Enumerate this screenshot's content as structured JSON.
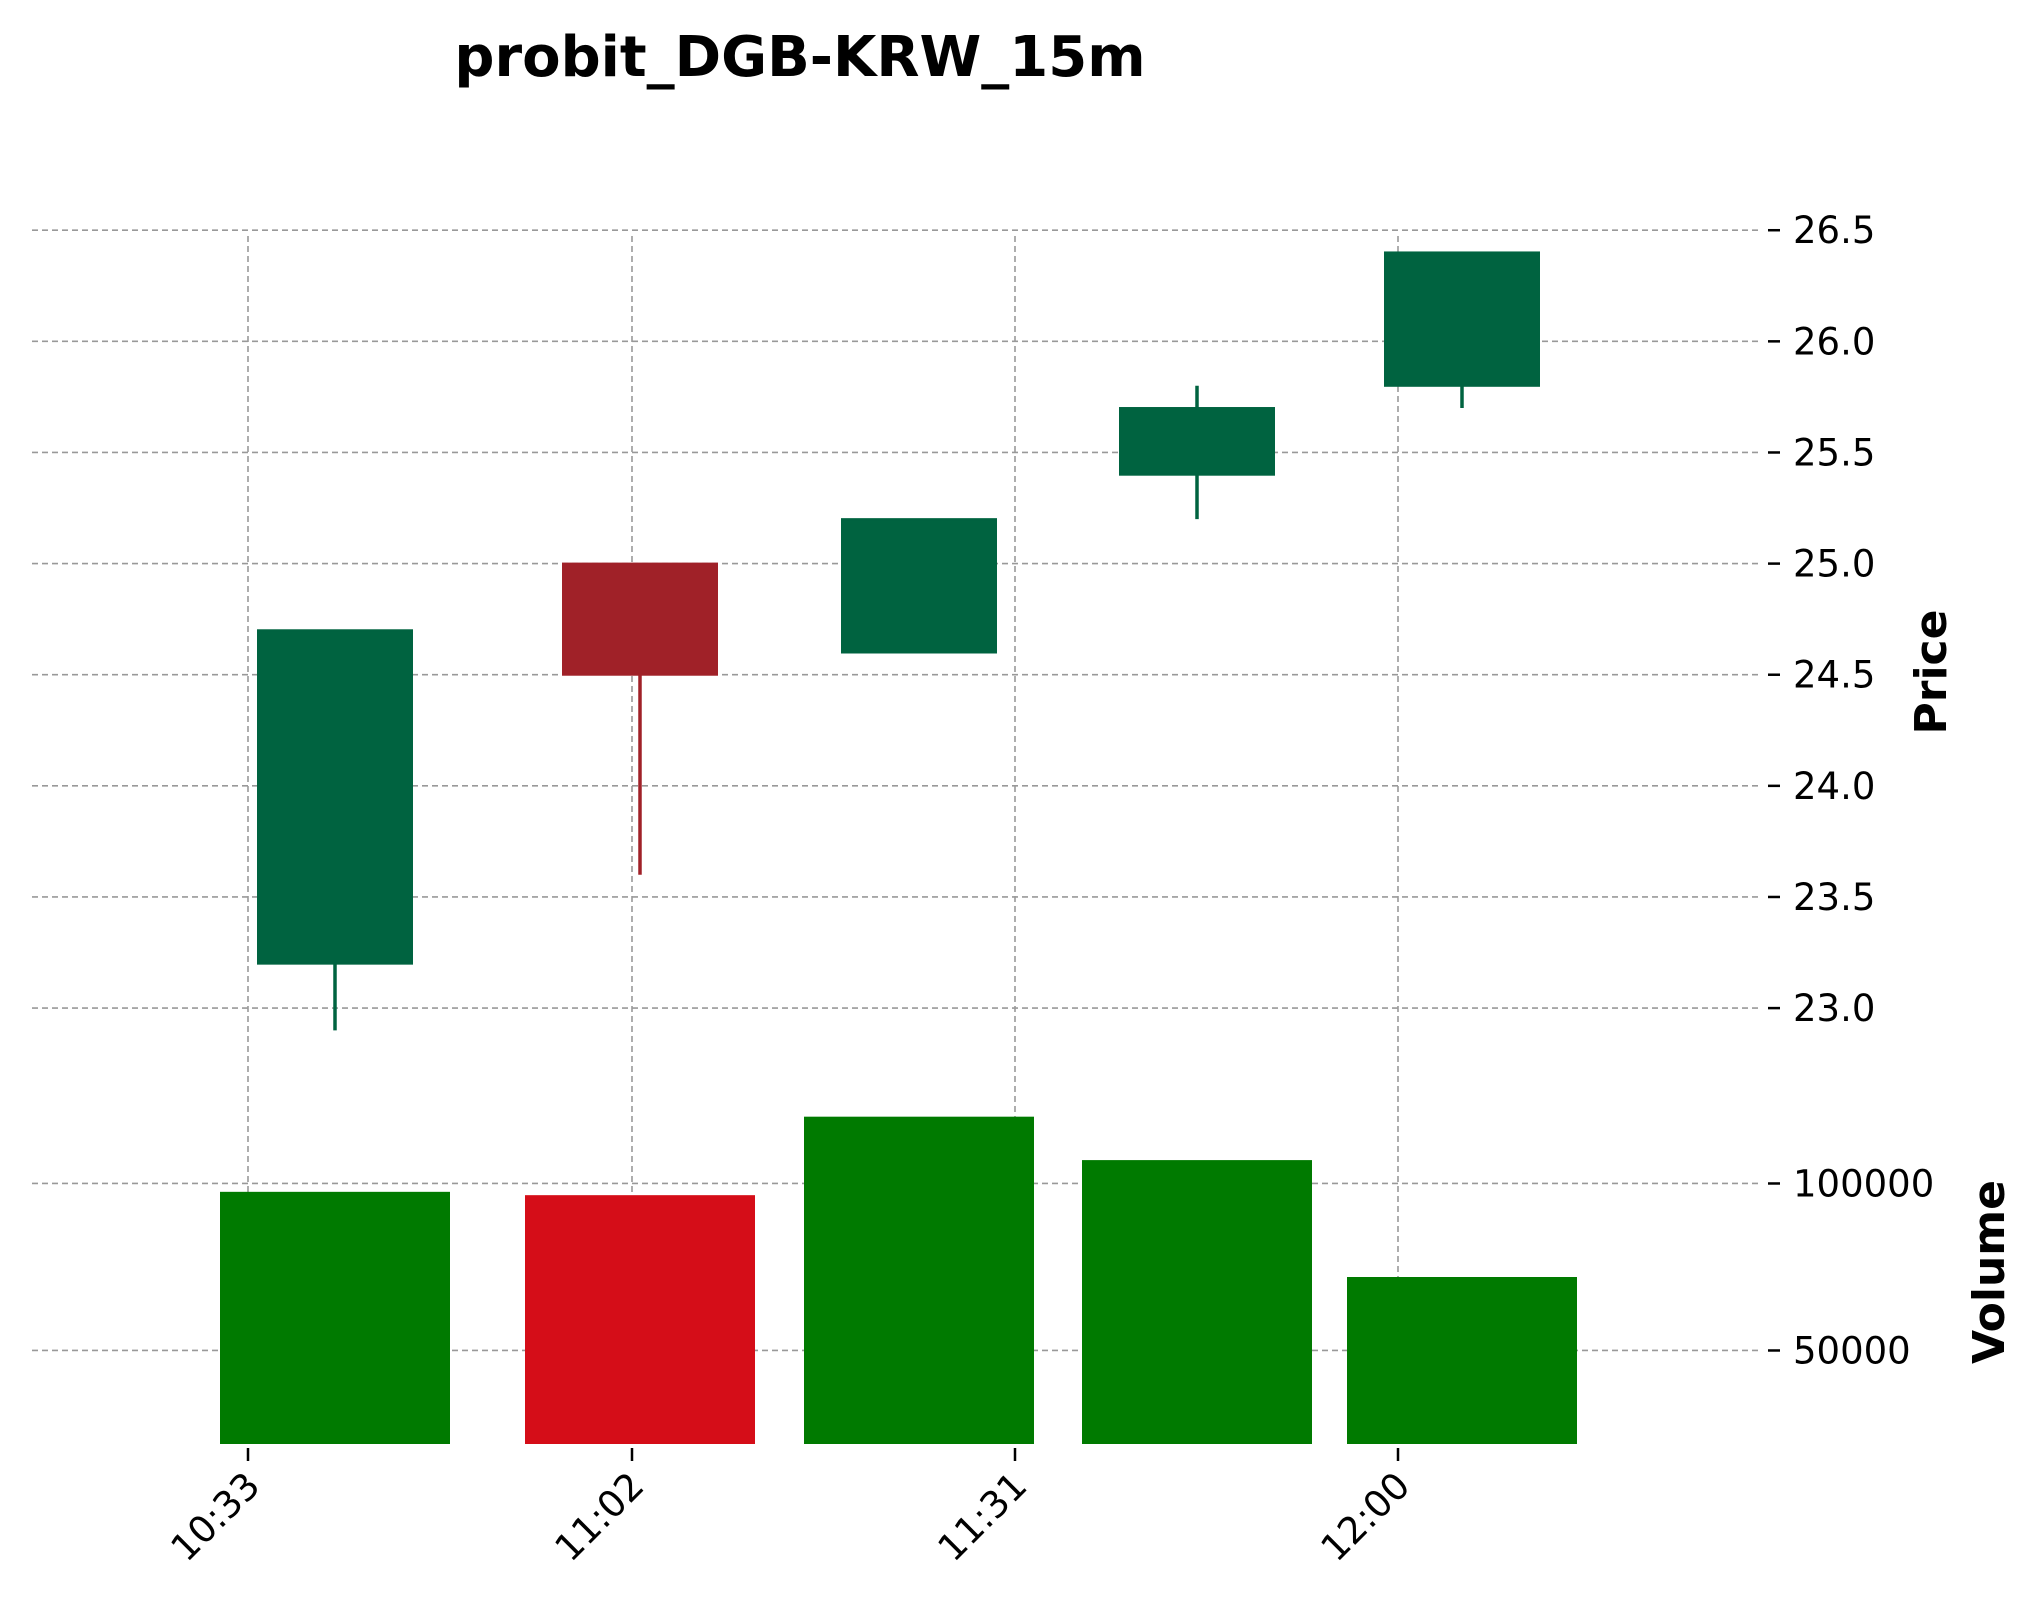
{
  "chart_data": {
    "type": "candlestick",
    "title": "probit_DGB-KRW_15m",
    "x_tick_labels": [
      "10:33",
      "11:02",
      "11:31",
      "12:00"
    ],
    "price_panel": {
      "ylabel": "Price",
      "ylim": [
        22.6,
        26.6
      ],
      "yticks": [
        23.0,
        23.5,
        24.0,
        24.5,
        25.0,
        25.5,
        26.0,
        26.5
      ],
      "candles": [
        {
          "open": 23.2,
          "high": 24.7,
          "low": 22.9,
          "close": 24.7,
          "direction": "up"
        },
        {
          "open": 25.0,
          "high": 25.0,
          "low": 23.6,
          "close": 24.5,
          "direction": "down"
        },
        {
          "open": 24.6,
          "high": 25.2,
          "low": 24.6,
          "close": 25.2,
          "direction": "up"
        },
        {
          "open": 25.4,
          "high": 25.8,
          "low": 25.2,
          "close": 25.7,
          "direction": "up"
        },
        {
          "open": 25.8,
          "high": 26.4,
          "low": 25.7,
          "close": 26.4,
          "direction": "up"
        }
      ]
    },
    "volume_panel": {
      "ylabel": "Volume",
      "ylim": [
        22000,
        122000
      ],
      "yticks": [
        50000,
        100000
      ],
      "bars": [
        {
          "value": 97500,
          "direction": "up"
        },
        {
          "value": 96500,
          "direction": "down"
        },
        {
          "value": 120000,
          "direction": "up"
        },
        {
          "value": 107000,
          "direction": "up"
        },
        {
          "value": 72000,
          "direction": "up"
        }
      ]
    },
    "grid": true,
    "colors": {
      "candle_up": "#006340",
      "candle_down": "#a02128",
      "volume_up": "#007a00",
      "volume_down": "#d50d18",
      "grid": "#999999"
    }
  }
}
